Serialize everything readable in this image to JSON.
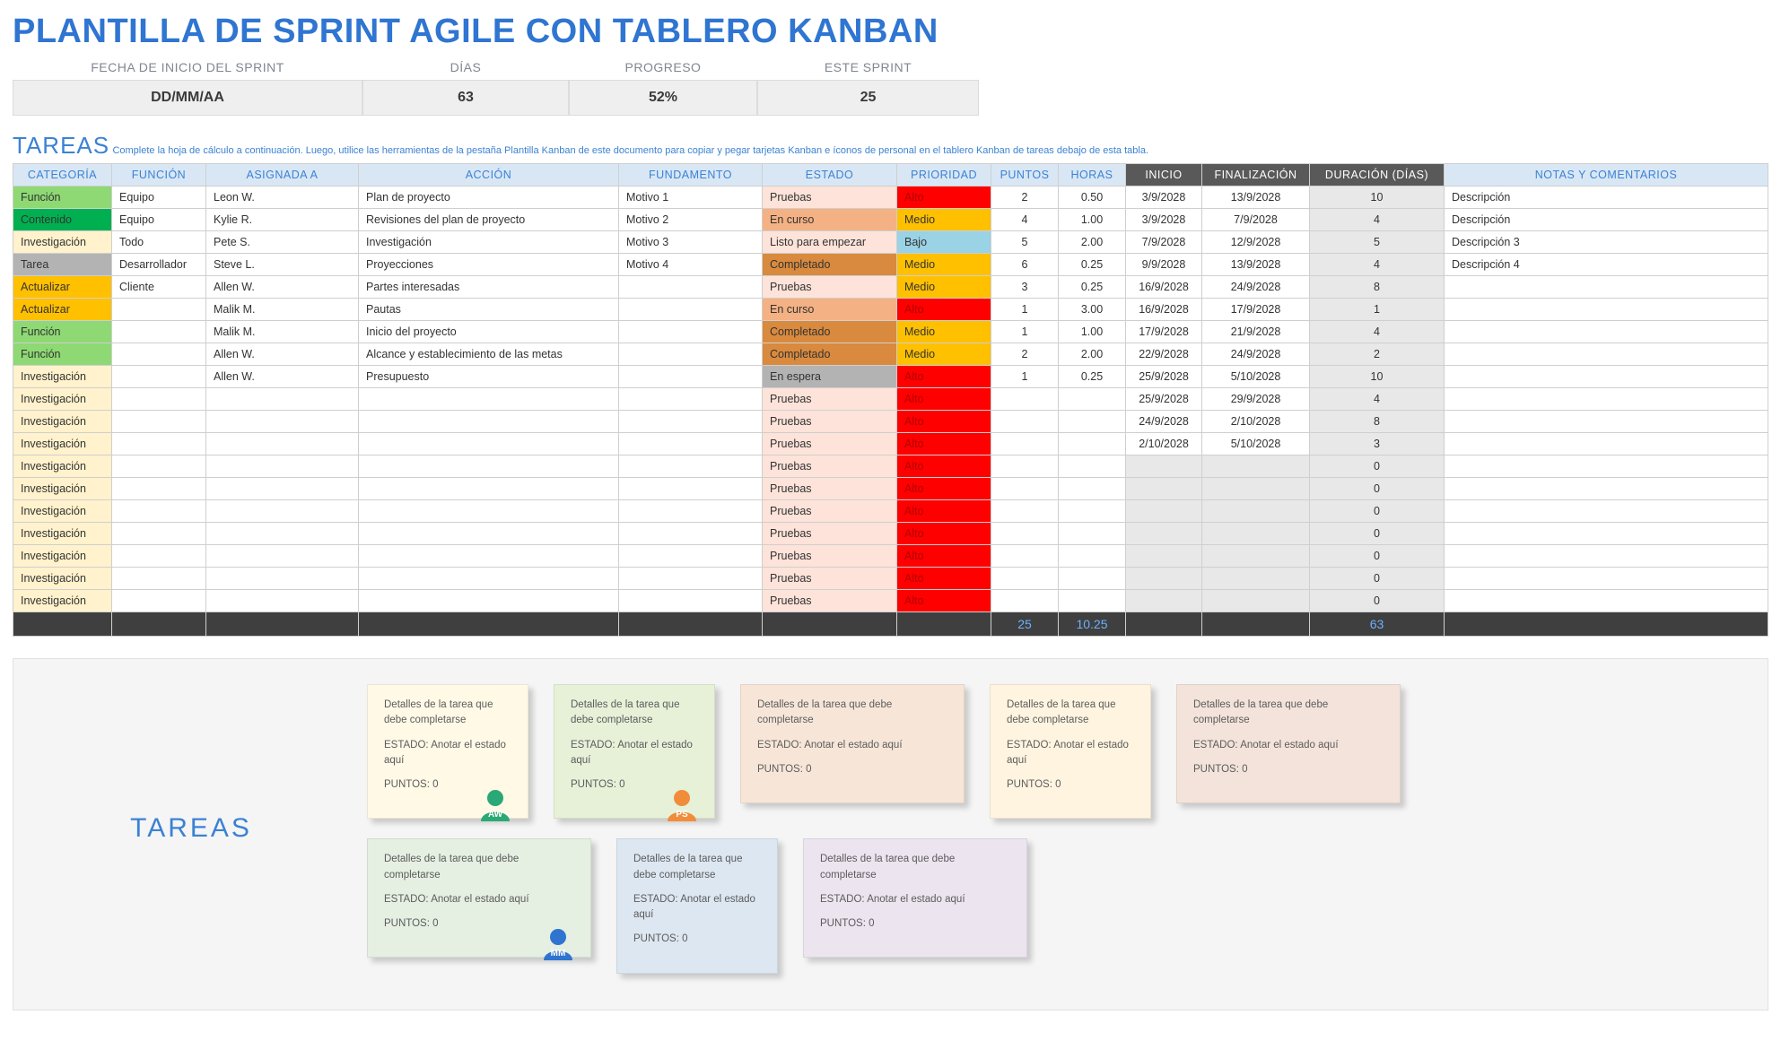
{
  "title": "PLANTILLA DE SPRINT AGILE CON TABLERO KANBAN",
  "summary": {
    "labels": [
      "FECHA DE INICIO DEL SPRINT",
      "DÍAS",
      "PROGRESO",
      "ESTE SPRINT"
    ],
    "values": [
      "DD/MM/AA",
      "63",
      "52%",
      "25"
    ]
  },
  "tareas_heading": "TAREAS",
  "tareas_instruction": "Complete la hoja de cálculo a continuación. Luego, utilice las herramientas de la pestaña Plantilla Kanban de este documento para copiar y pegar tarjetas Kanban e íconos de personal en el tablero Kanban de tareas debajo de esta tabla.",
  "columns": [
    "CATEGORÍA",
    "FUNCIÓN",
    "ASIGNADA A",
    "ACCIÓN",
    "FUNDAMENTO",
    "ESTADO",
    "PRIORIDAD",
    "PUNTOS",
    "HORAS",
    "INICIO",
    "FINALIZACIÓN",
    "DURACIÓN (DÍAS)",
    "NOTAS Y COMENTARIOS"
  ],
  "dark_header_cols": [
    9,
    10,
    11
  ],
  "col_centered": [
    7,
    8,
    9,
    10,
    11
  ],
  "category_colors": {
    "Función": "#8ed973",
    "Contenido": "#00b050",
    "Investigación": "#fff2cc",
    "Tarea": "#b3b3b3",
    "Actualizar": "#ffc000"
  },
  "estado_colors": {
    "Pruebas": "#fde3d9",
    "En curso": "#f4b183",
    "Listo para empezar": "#fde3d9",
    "Completado": "#d98a3e",
    "En espera": "#b3b3b3"
  },
  "prioridad_colors": {
    "Alto": "#ff0000",
    "Medio": "#ffc000",
    "Bajo": "#9ad2e6"
  },
  "rows": [
    {
      "categoria": "Función",
      "funcion": "Equipo",
      "asignada": "Leon W.",
      "accion": "Plan de proyecto",
      "fundamento": "Motivo 1",
      "estado": "Pruebas",
      "prioridad": "Alto",
      "puntos": "2",
      "horas": "0.50",
      "inicio": "3/9/2028",
      "fin": "13/9/2028",
      "dur": "10",
      "notas": "Descripción"
    },
    {
      "categoria": "Contenido",
      "funcion": "Equipo",
      "asignada": "Kylie R.",
      "accion": "Revisiones del plan de proyecto",
      "fundamento": "Motivo 2",
      "estado": "En curso",
      "prioridad": "Medio",
      "puntos": "4",
      "horas": "1.00",
      "inicio": "3/9/2028",
      "fin": "7/9/2028",
      "dur": "4",
      "notas": "Descripción"
    },
    {
      "categoria": "Investigación",
      "funcion": "Todo",
      "asignada": "Pete S.",
      "accion": "Investigación",
      "fundamento": "Motivo 3",
      "estado": "Listo para empezar",
      "prioridad": "Bajo",
      "puntos": "5",
      "horas": "2.00",
      "inicio": "7/9/2028",
      "fin": "12/9/2028",
      "dur": "5",
      "notas": "Descripción 3"
    },
    {
      "categoria": "Tarea",
      "funcion": "Desarrollador",
      "asignada": "Steve L.",
      "accion": "Proyecciones",
      "fundamento": "Motivo 4",
      "estado": "Completado",
      "prioridad": "Medio",
      "puntos": "6",
      "horas": "0.25",
      "inicio": "9/9/2028",
      "fin": "13/9/2028",
      "dur": "4",
      "notas": "Descripción 4"
    },
    {
      "categoria": "Actualizar",
      "funcion": "Cliente",
      "asignada": "Allen W.",
      "accion": "Partes interesadas",
      "fundamento": "",
      "estado": "Pruebas",
      "prioridad": "Medio",
      "puntos": "3",
      "horas": "0.25",
      "inicio": "16/9/2028",
      "fin": "24/9/2028",
      "dur": "8",
      "notas": ""
    },
    {
      "categoria": "Actualizar",
      "funcion": "",
      "asignada": "Malik M.",
      "accion": "Pautas",
      "fundamento": "",
      "estado": "En curso",
      "prioridad": "Alto",
      "puntos": "1",
      "horas": "3.00",
      "inicio": "16/9/2028",
      "fin": "17/9/2028",
      "dur": "1",
      "notas": ""
    },
    {
      "categoria": "Función",
      "funcion": "",
      "asignada": "Malik M.",
      "accion": "Inicio del proyecto",
      "fundamento": "",
      "estado": "Completado",
      "prioridad": "Medio",
      "puntos": "1",
      "horas": "1.00",
      "inicio": "17/9/2028",
      "fin": "21/9/2028",
      "dur": "4",
      "notas": ""
    },
    {
      "categoria": "Función",
      "funcion": "",
      "asignada": "Allen W.",
      "accion": "Alcance y establecimiento de las metas",
      "fundamento": "",
      "estado": "Completado",
      "prioridad": "Medio",
      "puntos": "2",
      "horas": "2.00",
      "inicio": "22/9/2028",
      "fin": "24/9/2028",
      "dur": "2",
      "notas": ""
    },
    {
      "categoria": "Investigación",
      "funcion": "",
      "asignada": "Allen W.",
      "accion": "Presupuesto",
      "fundamento": "",
      "estado": "En espera",
      "prioridad": "Alto",
      "puntos": "1",
      "horas": "0.25",
      "inicio": "25/9/2028",
      "fin": "5/10/2028",
      "dur": "10",
      "notas": ""
    },
    {
      "categoria": "Investigación",
      "funcion": "",
      "asignada": "",
      "accion": "",
      "fundamento": "",
      "estado": "Pruebas",
      "prioridad": "Alto",
      "puntos": "",
      "horas": "",
      "inicio": "25/9/2028",
      "fin": "29/9/2028",
      "dur": "4",
      "notas": ""
    },
    {
      "categoria": "Investigación",
      "funcion": "",
      "asignada": "",
      "accion": "",
      "fundamento": "",
      "estado": "Pruebas",
      "prioridad": "Alto",
      "puntos": "",
      "horas": "",
      "inicio": "24/9/2028",
      "fin": "2/10/2028",
      "dur": "8",
      "notas": ""
    },
    {
      "categoria": "Investigación",
      "funcion": "",
      "asignada": "",
      "accion": "",
      "fundamento": "",
      "estado": "Pruebas",
      "prioridad": "Alto",
      "puntos": "",
      "horas": "",
      "inicio": "2/10/2028",
      "fin": "5/10/2028",
      "dur": "3",
      "notas": ""
    },
    {
      "categoria": "Investigación",
      "funcion": "",
      "asignada": "",
      "accion": "",
      "fundamento": "",
      "estado": "Pruebas",
      "prioridad": "Alto",
      "puntos": "",
      "horas": "",
      "inicio": "",
      "fin": "",
      "dur": "0",
      "notas": ""
    },
    {
      "categoria": "Investigación",
      "funcion": "",
      "asignada": "",
      "accion": "",
      "fundamento": "",
      "estado": "Pruebas",
      "prioridad": "Alto",
      "puntos": "",
      "horas": "",
      "inicio": "",
      "fin": "",
      "dur": "0",
      "notas": ""
    },
    {
      "categoria": "Investigación",
      "funcion": "",
      "asignada": "",
      "accion": "",
      "fundamento": "",
      "estado": "Pruebas",
      "prioridad": "Alto",
      "puntos": "",
      "horas": "",
      "inicio": "",
      "fin": "",
      "dur": "0",
      "notas": ""
    },
    {
      "categoria": "Investigación",
      "funcion": "",
      "asignada": "",
      "accion": "",
      "fundamento": "",
      "estado": "Pruebas",
      "prioridad": "Alto",
      "puntos": "",
      "horas": "",
      "inicio": "",
      "fin": "",
      "dur": "0",
      "notas": ""
    },
    {
      "categoria": "Investigación",
      "funcion": "",
      "asignada": "",
      "accion": "",
      "fundamento": "",
      "estado": "Pruebas",
      "prioridad": "Alto",
      "puntos": "",
      "horas": "",
      "inicio": "",
      "fin": "",
      "dur": "0",
      "notas": ""
    },
    {
      "categoria": "Investigación",
      "funcion": "",
      "asignada": "",
      "accion": "",
      "fundamento": "",
      "estado": "Pruebas",
      "prioridad": "Alto",
      "puntos": "",
      "horas": "",
      "inicio": "",
      "fin": "",
      "dur": "0",
      "notas": ""
    },
    {
      "categoria": "Investigación",
      "funcion": "",
      "asignada": "",
      "accion": "",
      "fundamento": "",
      "estado": "Pruebas",
      "prioridad": "Alto",
      "puntos": "",
      "horas": "",
      "inicio": "",
      "fin": "",
      "dur": "0",
      "notas": ""
    }
  ],
  "totals": {
    "puntos": "25",
    "horas": "10.25",
    "dur": "63"
  },
  "kanban": {
    "side_title": "TAREAS",
    "card_text": {
      "detail": "Detalles de la tarea que debe completarse",
      "estado": "ESTADO: Anotar el estado aquí",
      "puntos": "PUNTOS: 0"
    },
    "row1": [
      {
        "bg": "#fff9e6",
        "narrow": true,
        "avatar": {
          "color": "#2aa876",
          "label": "AW"
        }
      },
      {
        "bg": "#e6f1d8",
        "narrow": true,
        "avatar": {
          "color": "#f08c3a",
          "label": "PS"
        }
      },
      {
        "bg": "#f7e6d8"
      },
      {
        "bg": "#fff4e0",
        "narrow": true
      },
      {
        "bg": "#f3e3da"
      }
    ],
    "row2": [
      {
        "bg": "#e5efe2",
        "avatar": {
          "color": "#2f74d0",
          "label": "MM"
        }
      },
      {
        "bg": "#dde7f1",
        "narrow": true
      },
      {
        "bg": "#ece4ef"
      }
    ]
  }
}
